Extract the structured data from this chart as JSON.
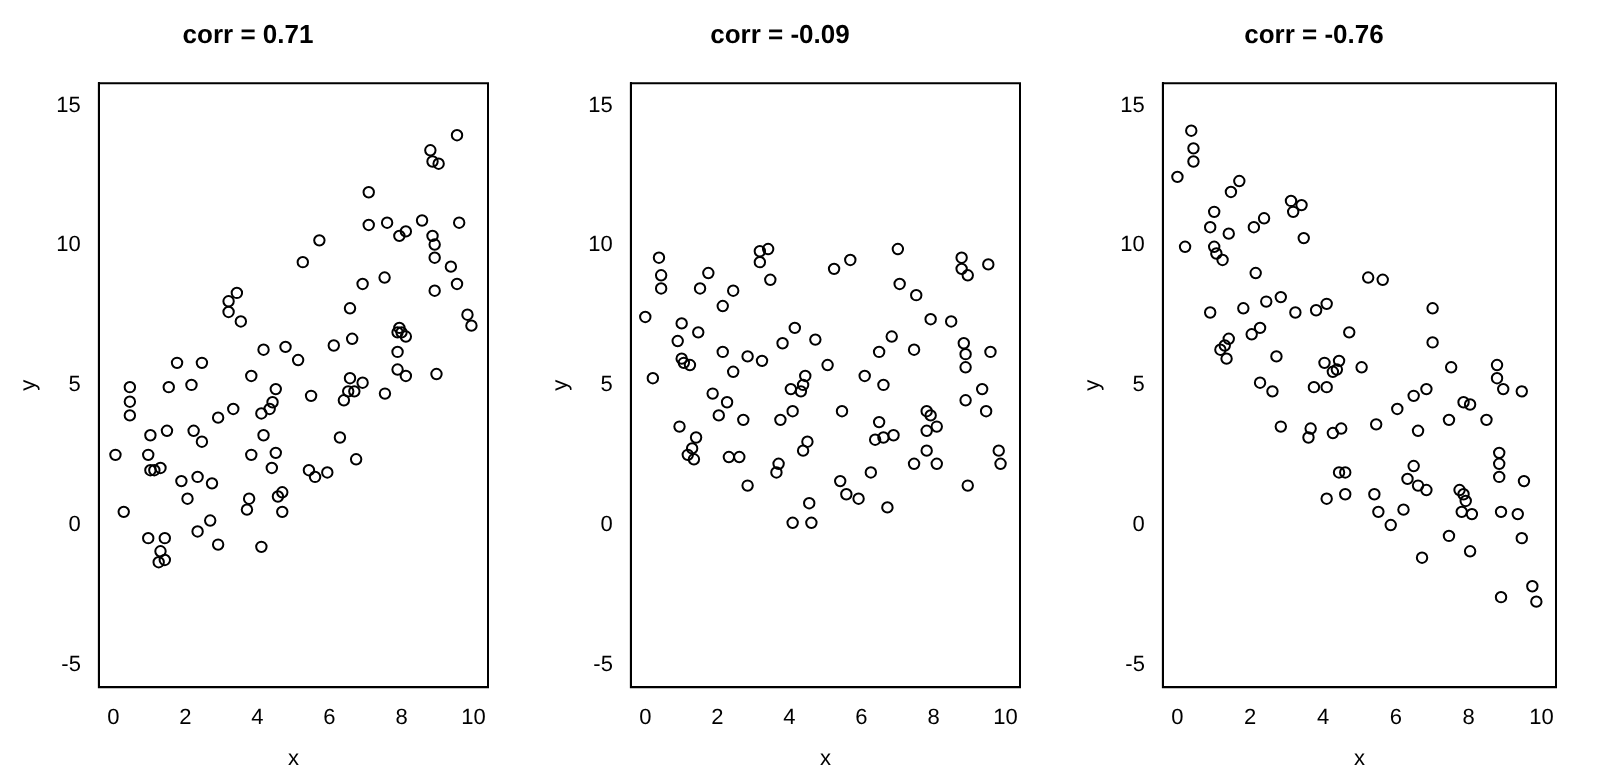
{
  "chart_data": [
    {
      "type": "scatter",
      "title": "corr = 0.71",
      "xlabel": "x",
      "ylabel": "y",
      "xlim": [
        -0.4,
        10.4
      ],
      "ylim": [
        -5.8,
        15.8
      ],
      "xticks": [
        0,
        2,
        4,
        6,
        8,
        10
      ],
      "yticks": [
        -5,
        0,
        5,
        10,
        15
      ],
      "grid": false,
      "legend": false,
      "marker": "circle",
      "series": [
        {
          "color": "#000000",
          "x": [
            3.2,
            3.43,
            3.2,
            3.54,
            4.17,
            4.78,
            1.77,
            2.46,
            3.83,
            0.46,
            0.46,
            0.46,
            1.54,
            2.17,
            4.51,
            4.42,
            4.34,
            4.11,
            3.33,
            2.91,
            1.03,
            1.49,
            2.23,
            2.46,
            4.17,
            0.06,
            0.97,
            3.83,
            4.51,
            1.03,
            1.14,
            1.31,
            4.4,
            1.89,
            2.34,
            2.74,
            2.06,
            3.77,
            3.71,
            4.69,
            4.57,
            4.69,
            0.29,
            2.69,
            2.34,
            0.97,
            1.43,
            2.91,
            4.11,
            1.31,
            1.26,
            1.43,
            9.54,
            8.8,
            8.86,
            9.03,
            7.09,
            7.09,
            7.6,
            8.57,
            9.6,
            7.94,
            8.12,
            8.86,
            8.92,
            8.92,
            5.72,
            5.26,
            9.37,
            6.92,
            7.53,
            9.54,
            8.92,
            6.57,
            9.83,
            9.94,
            6.63,
            6.12,
            7.89,
            8.0,
            7.94,
            8.12,
            5.13,
            7.89,
            7.89,
            8.12,
            8.97,
            5.49,
            6.57,
            6.92,
            6.69,
            6.52,
            6.4,
            7.54,
            6.29,
            6.74,
            5.43,
            5.6,
            5.94
          ],
          "values": [
            8.0,
            8.3,
            7.62,
            7.28,
            6.27,
            6.37,
            5.8,
            5.8,
            5.33,
            4.93,
            4.41,
            3.92,
            4.93,
            5.01,
            4.86,
            4.39,
            4.15,
            3.99,
            4.15,
            3.84,
            3.21,
            3.37,
            3.37,
            2.98,
            3.21,
            2.51,
            2.51,
            2.51,
            2.58,
            1.96,
            1.96,
            2.04,
            2.04,
            1.57,
            1.72,
            1.49,
            0.94,
            0.94,
            0.55,
            1.17,
            1.02,
            0.47,
            0.47,
            0.16,
            -0.23,
            -0.47,
            -0.47,
            -0.7,
            -0.78,
            -0.94,
            -1.33,
            -1.25,
            13.94,
            13.4,
            13.0,
            12.92,
            11.9,
            10.73,
            10.81,
            10.89,
            10.81,
            10.34,
            10.5,
            10.34,
            10.03,
            9.56,
            10.18,
            9.4,
            9.24,
            8.62,
            8.85,
            8.62,
            8.38,
            7.75,
            7.52,
            7.13,
            6.66,
            6.42,
            6.89,
            6.89,
            7.05,
            6.74,
            5.9,
            6.19,
            5.56,
            5.33,
            5.4,
            4.62,
            5.25,
            5.09,
            4.78,
            4.78,
            4.46,
            4.7,
            3.13,
            2.35,
            1.96,
            1.72,
            1.88
          ]
        }
      ]
    },
    {
      "type": "scatter",
      "title": "corr = -0.09",
      "xlabel": "x",
      "ylabel": "y",
      "xlim": [
        -0.4,
        10.4
      ],
      "ylim": [
        -5.8,
        15.8
      ],
      "xticks": [
        0,
        2,
        4,
        6,
        8,
        10
      ],
      "yticks": [
        -5,
        0,
        5,
        10,
        15
      ],
      "grid": false,
      "legend": false,
      "marker": "circle",
      "series": [
        {
          "color": "#000000",
          "x": [
            0.38,
            0.44,
            0.44,
            1.75,
            1.52,
            2.44,
            2.15,
            3.18,
            3.41,
            3.18,
            3.47,
            0.0,
            1.01,
            0.9,
            1.47,
            1.01,
            1.07,
            1.24,
            2.15,
            2.44,
            2.84,
            3.24,
            3.81,
            4.15,
            4.72,
            0.21,
            1.87,
            2.27,
            2.04,
            2.72,
            3.75,
            4.09,
            4.04,
            4.32,
            4.38,
            4.44,
            0.95,
            1.41,
            1.3,
            1.18,
            1.35,
            2.32,
            2.61,
            2.84,
            3.7,
            3.64,
            4.5,
            4.38,
            4.55,
            4.61,
            4.09,
            5.06,
            5.24,
            5.69,
            7.01,
            7.06,
            7.52,
            8.78,
            8.78,
            8.95,
            9.52,
            7.92,
            8.49,
            6.84,
            6.49,
            7.46,
            8.84,
            8.89,
            8.89,
            9.58,
            6.09,
            6.61,
            5.46,
            7.81,
            7.92,
            6.49,
            8.09,
            7.81,
            6.38,
            6.61,
            6.89,
            8.89,
            9.35,
            9.46,
            7.81,
            7.46,
            8.09,
            9.81,
            9.86,
            6.26,
            5.41,
            5.58,
            5.92,
            6.72,
            8.95
          ],
          "values": [
            9.56,
            8.93,
            8.46,
            9.01,
            8.46,
            8.38,
            7.83,
            9.79,
            9.87,
            9.4,
            8.77,
            7.44,
            7.21,
            6.58,
            6.89,
            5.95,
            5.8,
            5.72,
            6.19,
            5.48,
            6.03,
            5.87,
            6.5,
            7.05,
            6.63,
            5.25,
            4.7,
            4.39,
            3.92,
            3.76,
            3.76,
            4.07,
            4.86,
            4.78,
            5.01,
            5.33,
            3.52,
            3.13,
            2.74,
            2.51,
            2.35,
            2.43,
            2.43,
            1.41,
            2.19,
            1.88,
            2.98,
            2.66,
            0.78,
            0.08,
            0.08,
            5.72,
            9.16,
            9.48,
            9.87,
            8.62,
            8.22,
            9.56,
            9.16,
            8.93,
            9.32,
            7.36,
            7.28,
            6.74,
            6.19,
            6.27,
            6.5,
            6.11,
            5.64,
            6.19,
            5.33,
            5.01,
            4.07,
            4.07,
            3.92,
            3.68,
            3.52,
            3.37,
            3.05,
            3.13,
            3.21,
            4.46,
            4.86,
            4.07,
            2.66,
            2.19,
            2.19,
            2.66,
            2.19,
            1.88,
            1.57,
            1.1,
            0.94,
            0.63,
            1.41
          ]
        }
      ]
    },
    {
      "type": "scatter",
      "title": "corr = -0.76",
      "xlabel": "x",
      "ylabel": "y",
      "xlim": [
        -0.4,
        10.4
      ],
      "ylim": [
        -5.8,
        15.8
      ],
      "xticks": [
        0,
        2,
        4,
        6,
        8,
        10
      ],
      "yticks": [
        -5,
        0,
        5,
        10,
        15
      ],
      "grid": false,
      "legend": false,
      "marker": "circle",
      "series": [
        {
          "color": "#000000",
          "x": [
            0.38,
            0.44,
            0.44,
            0.0,
            1.47,
            1.7,
            1.01,
            0.9,
            1.41,
            0.21,
            1.01,
            1.07,
            1.24,
            2.1,
            2.38,
            3.12,
            3.41,
            3.18,
            3.47,
            2.15,
            0.9,
            1.81,
            2.44,
            2.84,
            3.24,
            3.81,
            4.1,
            2.04,
            2.27,
            4.72,
            1.41,
            1.3,
            1.18,
            1.35,
            2.72,
            4.04,
            4.44,
            4.38,
            4.27,
            2.27,
            2.61,
            3.75,
            4.1,
            2.84,
            3.66,
            3.6,
            4.27,
            4.5,
            4.44,
            4.61,
            4.1,
            4.61,
            5.06,
            5.24,
            5.64,
            7.01,
            7.01,
            7.52,
            8.78,
            8.78,
            8.95,
            9.46,
            6.84,
            6.49,
            6.04,
            7.86,
            8.04,
            7.46,
            8.49,
            5.46,
            6.61,
            8.84,
            8.84,
            8.84,
            9.52,
            6.49,
            6.32,
            6.61,
            6.84,
            5.41,
            5.52,
            5.86,
            6.21,
            7.75,
            7.86,
            7.92,
            7.81,
            8.09,
            8.89,
            9.35,
            7.46,
            9.46,
            8.04,
            6.72,
            8.89,
            9.75,
            9.86
          ],
          "values": [
            14.1,
            13.47,
            13.0,
            12.45,
            11.91,
            12.3,
            11.2,
            10.65,
            10.42,
            9.95,
            9.95,
            9.71,
            9.48,
            10.65,
            10.97,
            11.59,
            11.44,
            11.2,
            10.26,
            9.01,
            7.6,
            7.75,
            7.99,
            8.15,
            7.6,
            7.68,
            7.91,
            6.82,
            7.05,
            6.89,
            6.66,
            6.42,
            6.27,
            5.95,
            6.03,
            5.8,
            5.87,
            5.56,
            5.48,
            5.09,
            4.78,
            4.93,
            4.93,
            3.52,
            3.45,
            3.13,
            3.29,
            3.45,
            1.88,
            1.88,
            0.94,
            1.1,
            5.64,
            8.85,
            8.77,
            7.75,
            6.53,
            5.64,
            5.72,
            5.25,
            4.86,
            4.78,
            4.86,
            4.62,
            4.15,
            4.39,
            4.31,
            3.76,
            3.76,
            3.6,
            3.37,
            2.58,
            2.19,
            1.72,
            1.57,
            2.11,
            1.65,
            1.41,
            1.25,
            1.1,
            0.47,
            0.0,
            0.55,
            1.25,
            1.1,
            0.86,
            0.47,
            0.39,
            0.47,
            0.39,
            -0.39,
            -0.47,
            -0.94,
            -1.17,
            -2.58,
            -2.19,
            -2.74
          ]
        }
      ]
    }
  ]
}
